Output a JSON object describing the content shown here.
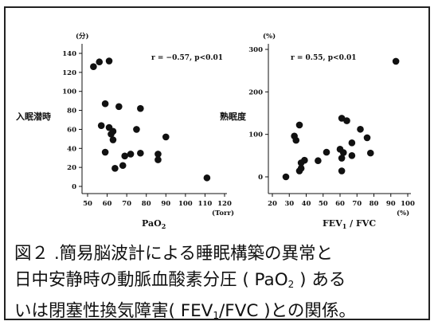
{
  "chart_data": [
    {
      "type": "scatter",
      "xlabel": "PaO",
      "xlabel_sub": "2",
      "x_unit": "(Torr)",
      "ylabel": "入眠潜時",
      "y_unit": "(分)",
      "annotation": "r = −0.57, p<0.01",
      "xlim": [
        50,
        120
      ],
      "ylim": [
        0,
        140
      ],
      "xticks": [
        "50",
        "60",
        "70",
        "80",
        "90",
        "100",
        "110",
        "120"
      ],
      "yticks": [
        "0",
        "20",
        "40",
        "60",
        "80",
        "100",
        "120",
        "140"
      ],
      "grid": false,
      "points": [
        {
          "x": 53,
          "y": 126
        },
        {
          "x": 56,
          "y": 131
        },
        {
          "x": 61,
          "y": 132
        },
        {
          "x": 59,
          "y": 87
        },
        {
          "x": 66,
          "y": 84
        },
        {
          "x": 77,
          "y": 82
        },
        {
          "x": 57,
          "y": 64
        },
        {
          "x": 61,
          "y": 62
        },
        {
          "x": 63,
          "y": 58
        },
        {
          "x": 62,
          "y": 55
        },
        {
          "x": 63,
          "y": 49
        },
        {
          "x": 75,
          "y": 60
        },
        {
          "x": 90,
          "y": 52
        },
        {
          "x": 59,
          "y": 36
        },
        {
          "x": 69,
          "y": 32
        },
        {
          "x": 72,
          "y": 34
        },
        {
          "x": 77,
          "y": 35
        },
        {
          "x": 86,
          "y": 34
        },
        {
          "x": 86,
          "y": 28
        },
        {
          "x": 68,
          "y": 22
        },
        {
          "x": 64,
          "y": 19
        },
        {
          "x": 111,
          "y": 9
        }
      ]
    },
    {
      "type": "scatter",
      "xlabel": "FEV",
      "xlabel_sub": "1",
      "xlabel_rest": " / FVC",
      "x_unit": "(%)",
      "ylabel": "熟眠度",
      "y_unit": "(%)",
      "annotation": "r = 0.55, p<0.01",
      "xlim": [
        20,
        100
      ],
      "ylim": [
        0,
        300
      ],
      "xticks": [
        "20",
        "30",
        "40",
        "50",
        "60",
        "70",
        "80",
        "90",
        "100"
      ],
      "yticks": [
        "0",
        "100",
        "200",
        "300"
      ],
      "grid": false,
      "points": [
        {
          "x": 93,
          "y": 272
        },
        {
          "x": 61,
          "y": 138
        },
        {
          "x": 64,
          "y": 132
        },
        {
          "x": 36,
          "y": 122
        },
        {
          "x": 33,
          "y": 96
        },
        {
          "x": 72,
          "y": 112
        },
        {
          "x": 34,
          "y": 86
        },
        {
          "x": 67,
          "y": 80
        },
        {
          "x": 76,
          "y": 92
        },
        {
          "x": 60,
          "y": 65
        },
        {
          "x": 62,
          "y": 57
        },
        {
          "x": 52,
          "y": 58
        },
        {
          "x": 78,
          "y": 56
        },
        {
          "x": 67,
          "y": 50
        },
        {
          "x": 61,
          "y": 44
        },
        {
          "x": 39,
          "y": 39
        },
        {
          "x": 37,
          "y": 33
        },
        {
          "x": 47,
          "y": 38
        },
        {
          "x": 37,
          "y": 20
        },
        {
          "x": 36,
          "y": 14
        },
        {
          "x": 61,
          "y": 14
        },
        {
          "x": 28,
          "y": 0
        }
      ]
    }
  ],
  "caption": {
    "line1": "図２ .簡易脳波計による睡眠構築の異常と",
    "line2_a": "日中安静時の動脈血酸素分圧 ( PaO",
    "line2_sub": "2",
    "line2_b": " ) ある",
    "line3_a": "いは閉塞性換気障害( FEV",
    "line3_sub": "1",
    "line3_b": "/FVC )との関係。"
  }
}
